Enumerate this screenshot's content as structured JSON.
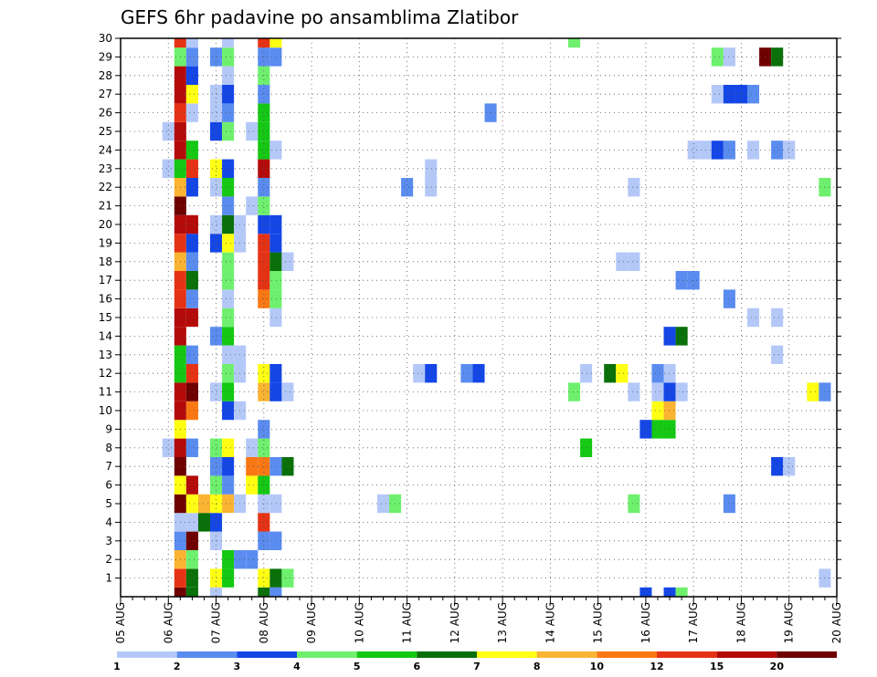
{
  "chart_data": {
    "type": "heatmap",
    "title": "GEFS 6hr padavine po ansamblima Zlatibor",
    "x_ticks": [
      "05 AUG",
      "06 AUG",
      "07 AUG",
      "08 AUG",
      "09 AUG",
      "10 AUG",
      "11 AUG",
      "12 AUG",
      "13 AUG",
      "14 AUG",
      "15 AUG",
      "16 AUG",
      "17 AUG",
      "18 AUG",
      "19 AUG",
      "20 AUG"
    ],
    "y_ticks": [
      1,
      2,
      3,
      4,
      5,
      6,
      7,
      8,
      9,
      10,
      11,
      12,
      13,
      14,
      15,
      16,
      17,
      18,
      19,
      20,
      21,
      22,
      23,
      24,
      25,
      26,
      27,
      28,
      29,
      30
    ],
    "x_range": [
      "05 AUG 00Z",
      "20 AUG 00Z"
    ],
    "y_range": [
      0,
      30
    ],
    "steps_per_day": 4,
    "grid": true,
    "colorbar": {
      "levels": [
        "1",
        "2",
        "3",
        "4",
        "5",
        "6",
        "7",
        "8",
        "10",
        "12",
        "15",
        "20"
      ],
      "colors": [
        "#b4c8f8",
        "#5a8cf0",
        "#1446e6",
        "#6ef06e",
        "#14c814",
        "#0a700a",
        "#ffff14",
        "#fab432",
        "#fa7814",
        "#e63214",
        "#b40a0a",
        "#6e0000"
      ]
    },
    "cells": [
      [
        1.25,
        0,
        11
      ],
      [
        1.5,
        0,
        5
      ],
      [
        2.0,
        0,
        0
      ],
      [
        3.0,
        0,
        5
      ],
      [
        3.25,
        0,
        1
      ],
      [
        11.0,
        0,
        2
      ],
      [
        11.5,
        0,
        2
      ],
      [
        11.75,
        0,
        3
      ],
      [
        1.25,
        1,
        9
      ],
      [
        1.5,
        1,
        5
      ],
      [
        2.0,
        1,
        6
      ],
      [
        2.25,
        1,
        4
      ],
      [
        3.0,
        1,
        6
      ],
      [
        3.25,
        1,
        5
      ],
      [
        3.5,
        1,
        3
      ],
      [
        14.75,
        1,
        0
      ],
      [
        1.25,
        2,
        7
      ],
      [
        1.5,
        2,
        3
      ],
      [
        2.25,
        2,
        4
      ],
      [
        2.5,
        2,
        1
      ],
      [
        2.75,
        2,
        1
      ],
      [
        1.25,
        3,
        1
      ],
      [
        1.5,
        3,
        11
      ],
      [
        2.0,
        3,
        0
      ],
      [
        3.0,
        3,
        1
      ],
      [
        3.25,
        3,
        1
      ],
      [
        1.25,
        4,
        0
      ],
      [
        1.5,
        4,
        0
      ],
      [
        1.75,
        4,
        5
      ],
      [
        2.0,
        4,
        2
      ],
      [
        3.0,
        4,
        9
      ],
      [
        1.25,
        5,
        11
      ],
      [
        1.5,
        5,
        6
      ],
      [
        1.75,
        5,
        7
      ],
      [
        2.0,
        5,
        6
      ],
      [
        2.25,
        5,
        7
      ],
      [
        2.5,
        5,
        0
      ],
      [
        3.0,
        5,
        0
      ],
      [
        3.25,
        5,
        0
      ],
      [
        5.5,
        5,
        0
      ],
      [
        5.75,
        5,
        3
      ],
      [
        10.75,
        5,
        3
      ],
      [
        12.75,
        5,
        1
      ],
      [
        1.25,
        6,
        6
      ],
      [
        1.5,
        6,
        10
      ],
      [
        2.0,
        6,
        3
      ],
      [
        2.25,
        6,
        1
      ],
      [
        2.75,
        6,
        6
      ],
      [
        3.0,
        6,
        4
      ],
      [
        1.25,
        7,
        11
      ],
      [
        2.0,
        7,
        1
      ],
      [
        2.25,
        7,
        2
      ],
      [
        2.75,
        7,
        8
      ],
      [
        3.0,
        7,
        8
      ],
      [
        3.25,
        7,
        1
      ],
      [
        3.5,
        7,
        5
      ],
      [
        13.75,
        7,
        2
      ],
      [
        14.0,
        7,
        0
      ],
      [
        1.0,
        8,
        0
      ],
      [
        1.25,
        8,
        10
      ],
      [
        1.5,
        8,
        1
      ],
      [
        2.0,
        8,
        3
      ],
      [
        2.25,
        8,
        6
      ],
      [
        2.75,
        8,
        0
      ],
      [
        3.0,
        8,
        3
      ],
      [
        9.75,
        8,
        4
      ],
      [
        1.25,
        9,
        6
      ],
      [
        3.0,
        9,
        1
      ],
      [
        11.0,
        9,
        2
      ],
      [
        11.25,
        9,
        4
      ],
      [
        11.5,
        9,
        4
      ],
      [
        1.25,
        10,
        10
      ],
      [
        1.5,
        10,
        8
      ],
      [
        2.25,
        10,
        2
      ],
      [
        2.5,
        10,
        0
      ],
      [
        11.25,
        10,
        6
      ],
      [
        11.5,
        10,
        7
      ],
      [
        1.25,
        11,
        10
      ],
      [
        1.5,
        11,
        11
      ],
      [
        2.0,
        11,
        0
      ],
      [
        2.25,
        11,
        4
      ],
      [
        3.0,
        11,
        7
      ],
      [
        3.25,
        11,
        2
      ],
      [
        3.5,
        11,
        0
      ],
      [
        9.5,
        11,
        3
      ],
      [
        10.75,
        11,
        0
      ],
      [
        11.25,
        11,
        0
      ],
      [
        11.5,
        11,
        2
      ],
      [
        11.75,
        11,
        0
      ],
      [
        14.5,
        11,
        6
      ],
      [
        14.75,
        11,
        1
      ],
      [
        1.25,
        12,
        4
      ],
      [
        1.5,
        12,
        9
      ],
      [
        2.25,
        12,
        3
      ],
      [
        2.5,
        12,
        0
      ],
      [
        3.0,
        12,
        6
      ],
      [
        3.25,
        12,
        2
      ],
      [
        6.25,
        12,
        0
      ],
      [
        6.5,
        12,
        2
      ],
      [
        7.25,
        12,
        1
      ],
      [
        7.5,
        12,
        2
      ],
      [
        9.75,
        12,
        0
      ],
      [
        10.25,
        12,
        5
      ],
      [
        10.5,
        12,
        6
      ],
      [
        11.25,
        12,
        1
      ],
      [
        11.5,
        12,
        0
      ],
      [
        1.25,
        13,
        4
      ],
      [
        1.5,
        13,
        1
      ],
      [
        2.25,
        13,
        0
      ],
      [
        2.5,
        13,
        0
      ],
      [
        13.75,
        13,
        0
      ],
      [
        1.25,
        14,
        10
      ],
      [
        2.0,
        14,
        1
      ],
      [
        2.25,
        14,
        4
      ],
      [
        11.5,
        14,
        2
      ],
      [
        11.75,
        14,
        5
      ],
      [
        1.25,
        15,
        10
      ],
      [
        1.5,
        15,
        10
      ],
      [
        2.25,
        15,
        3
      ],
      [
        3.25,
        15,
        0
      ],
      [
        13.25,
        15,
        0
      ],
      [
        13.75,
        15,
        0
      ],
      [
        1.25,
        16,
        9
      ],
      [
        1.5,
        16,
        1
      ],
      [
        2.25,
        16,
        0
      ],
      [
        3.0,
        16,
        8
      ],
      [
        3.25,
        16,
        3
      ],
      [
        12.75,
        16,
        1
      ],
      [
        1.25,
        17,
        9
      ],
      [
        1.5,
        17,
        5
      ],
      [
        2.25,
        17,
        3
      ],
      [
        3.0,
        17,
        9
      ],
      [
        3.25,
        17,
        3
      ],
      [
        11.75,
        17,
        1
      ],
      [
        12.0,
        17,
        1
      ],
      [
        1.25,
        18,
        7
      ],
      [
        1.5,
        18,
        1
      ],
      [
        2.25,
        18,
        3
      ],
      [
        3.0,
        18,
        9
      ],
      [
        3.25,
        18,
        5
      ],
      [
        3.5,
        18,
        0
      ],
      [
        10.5,
        18,
        0
      ],
      [
        10.75,
        18,
        0
      ],
      [
        1.25,
        19,
        9
      ],
      [
        1.5,
        19,
        2
      ],
      [
        2.0,
        19,
        2
      ],
      [
        2.25,
        19,
        6
      ],
      [
        2.5,
        19,
        0
      ],
      [
        3.0,
        19,
        9
      ],
      [
        3.25,
        19,
        2
      ],
      [
        1.25,
        20,
        10
      ],
      [
        1.5,
        20,
        10
      ],
      [
        2.0,
        20,
        0
      ],
      [
        2.25,
        20,
        5
      ],
      [
        2.5,
        20,
        0
      ],
      [
        3.0,
        20,
        2
      ],
      [
        3.25,
        20,
        2
      ],
      [
        1.25,
        21,
        11
      ],
      [
        2.25,
        21,
        1
      ],
      [
        2.75,
        21,
        0
      ],
      [
        3.0,
        21,
        3
      ],
      [
        1.25,
        22,
        7
      ],
      [
        1.5,
        22,
        2
      ],
      [
        2.0,
        22,
        0
      ],
      [
        2.25,
        22,
        4
      ],
      [
        3.0,
        22,
        1
      ],
      [
        6.0,
        22,
        1
      ],
      [
        6.5,
        22,
        0
      ],
      [
        10.75,
        22,
        0
      ],
      [
        14.75,
        22,
        3
      ],
      [
        1.0,
        23,
        0
      ],
      [
        1.25,
        23,
        4
      ],
      [
        1.5,
        23,
        9
      ],
      [
        2.0,
        23,
        6
      ],
      [
        2.25,
        23,
        2
      ],
      [
        3.0,
        23,
        10
      ],
      [
        6.5,
        23,
        0
      ],
      [
        1.25,
        24,
        10
      ],
      [
        1.5,
        24,
        4
      ],
      [
        3.0,
        24,
        4
      ],
      [
        3.25,
        24,
        0
      ],
      [
        12.0,
        24,
        0
      ],
      [
        12.25,
        24,
        0
      ],
      [
        12.5,
        24,
        2
      ],
      [
        12.75,
        24,
        1
      ],
      [
        13.25,
        24,
        0
      ],
      [
        13.75,
        24,
        1
      ],
      [
        14.0,
        24,
        0
      ],
      [
        1.0,
        25,
        0
      ],
      [
        1.25,
        25,
        10
      ],
      [
        2.0,
        25,
        2
      ],
      [
        2.25,
        25,
        3
      ],
      [
        2.75,
        25,
        0
      ],
      [
        3.0,
        25,
        4
      ],
      [
        1.25,
        26,
        9
      ],
      [
        1.5,
        26,
        0
      ],
      [
        2.0,
        26,
        0
      ],
      [
        2.25,
        26,
        1
      ],
      [
        3.0,
        26,
        4
      ],
      [
        7.75,
        26,
        1
      ],
      [
        1.25,
        27,
        10
      ],
      [
        1.5,
        27,
        6
      ],
      [
        2.0,
        27,
        0
      ],
      [
        2.25,
        27,
        2
      ],
      [
        3.0,
        27,
        1
      ],
      [
        12.5,
        27,
        0
      ],
      [
        12.75,
        27,
        2
      ],
      [
        13.0,
        27,
        2
      ],
      [
        13.25,
        27,
        1
      ],
      [
        1.25,
        28,
        10
      ],
      [
        1.5,
        28,
        2
      ],
      [
        2.25,
        28,
        0
      ],
      [
        3.0,
        28,
        3
      ],
      [
        1.25,
        29,
        3
      ],
      [
        1.5,
        29,
        1
      ],
      [
        2.0,
        29,
        1
      ],
      [
        2.25,
        29,
        3
      ],
      [
        3.0,
        29,
        1
      ],
      [
        3.25,
        29,
        1
      ],
      [
        12.5,
        29,
        3
      ],
      [
        12.75,
        29,
        0
      ],
      [
        13.5,
        29,
        11
      ],
      [
        13.75,
        29,
        5
      ],
      [
        1.25,
        30,
        9
      ],
      [
        1.5,
        30,
        0
      ],
      [
        2.25,
        30,
        0
      ],
      [
        3.0,
        30,
        9
      ],
      [
        3.25,
        30,
        6
      ],
      [
        9.5,
        30,
        3
      ]
    ]
  }
}
